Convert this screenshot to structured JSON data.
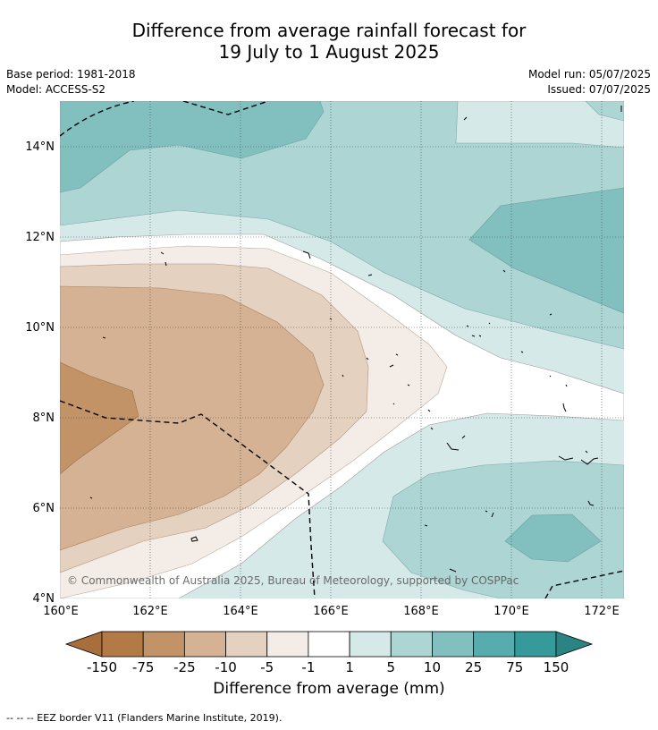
{
  "title": {
    "line1": "Difference from average rainfall forecast for",
    "line2": "19 July to 1 August 2025"
  },
  "meta": {
    "base_period": "Base period: 1981-2018",
    "model": "Model: ACCESS-S2",
    "model_run": "Model run: 05/07/2025",
    "issued": "Issued: 07/07/2025"
  },
  "map": {
    "lat_labels": [
      "4°N",
      "6°N",
      "8°N",
      "10°N",
      "12°N",
      "14°N"
    ],
    "lon_labels": [
      "160°E",
      "162°E",
      "164°E",
      "166°E",
      "168°E",
      "170°E",
      "172°E"
    ],
    "copyright": "© Commonwealth of Australia 2025, Bureau of Meteorology, supported by COSPPac"
  },
  "legend": {
    "tick_labels": [
      "-150",
      "-75",
      "-25",
      "-10",
      "-5",
      "-1",
      "1",
      "5",
      "10",
      "25",
      "75",
      "150"
    ],
    "colors": [
      "#a86f3c",
      "#b47a46",
      "#c29367",
      "#d4b293",
      "#e4d1bf",
      "#f4ede7",
      "#ffffff",
      "#d5e9e8",
      "#acd5d4",
      "#82c0c0",
      "#57acad",
      "#359b9a",
      "#2a8484"
    ],
    "label": "Difference from average (mm)"
  },
  "footer": "--  --  -- EEZ border V11 (Flanders Marine Institute, 2019)."
}
